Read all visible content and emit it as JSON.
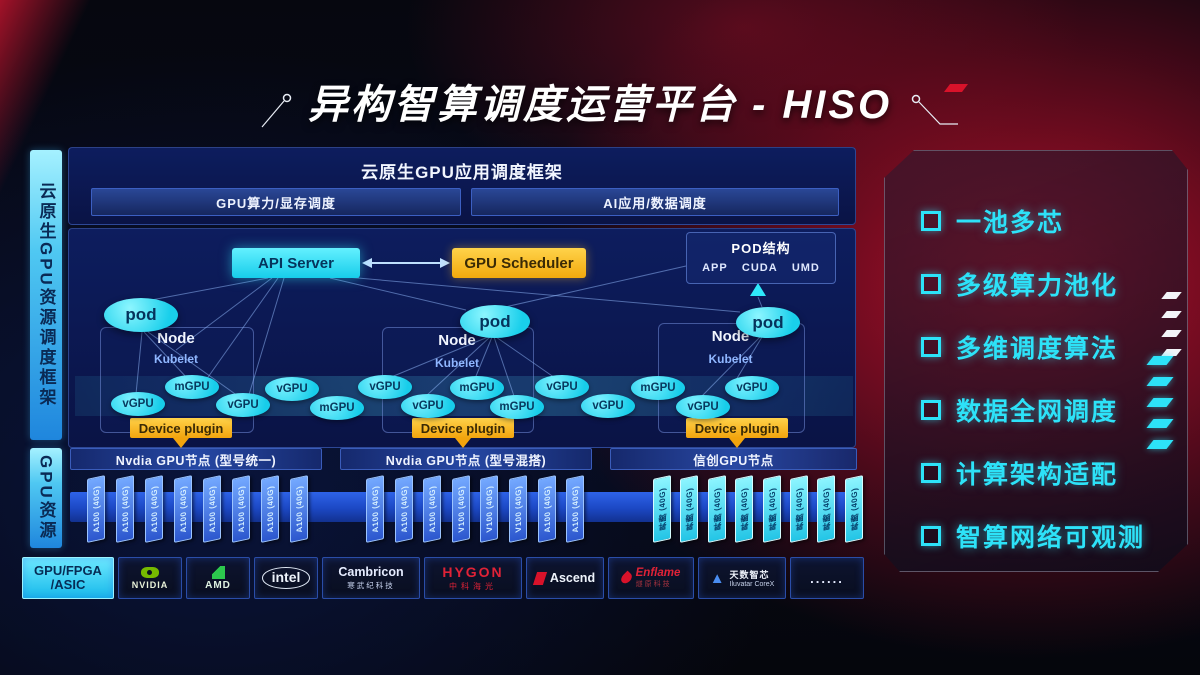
{
  "title": "异构智算调度运营平台 - HISO",
  "colors": {
    "accent_cyan": "#2fe9fa",
    "accent_yellow": "#ffc41f",
    "card_blue": "#4a84f2",
    "card_cyan": "#35e3f8",
    "nvidia_green": "#76b900",
    "brand_red": "#d8122a"
  },
  "sidebar": {
    "framework_label": "云原生GPU资源调度框架",
    "gpu_resource_label": "GPU资源"
  },
  "top_frame": {
    "title": "云原生GPU应用调度框架",
    "left_bar": "GPU算力/显存调度",
    "right_bar": "AI应用/数据调度"
  },
  "scheduler": {
    "api_server": "API Server",
    "gpu_scheduler": "GPU Scheduler"
  },
  "pod_structure": {
    "title": "POD结构",
    "items": [
      "APP",
      "CUDA",
      "UMD"
    ]
  },
  "nodes": [
    {
      "pod": "pod",
      "name": "Node",
      "agent": "Kubelet",
      "device_plugin": "Device plugin"
    },
    {
      "pod": "pod",
      "name": "Node",
      "agent": "Kubelet",
      "device_plugin": "Device plugin"
    },
    {
      "pod": "pod",
      "name": "Node",
      "agent": "Kubelet",
      "device_plugin": "Device plugin"
    }
  ],
  "gpu_band": [
    "vGPU",
    "mGPU",
    "vGPU",
    "vGPU",
    "mGPU",
    "vGPU",
    "vGPU",
    "mGPU",
    "mGPU",
    "vGPU",
    "vGPU",
    "mGPU",
    "vGPU",
    "vGPU"
  ],
  "gpu_groups": [
    {
      "label": "Nvdia GPU节点 (型号统一)",
      "variant": "blue",
      "cards": [
        "A100 (40G)",
        "A100 (40G)",
        "A100 (40G)",
        "A100 (40G)",
        "A100 (40G)",
        "A100 (40G)",
        "A100 (40G)",
        "A100 (40G)"
      ]
    },
    {
      "label": "Nvdia GPU节点 (型号混搭)",
      "variant": "blue",
      "cards": [
        "A100 (40G)",
        "A100 (40G)",
        "A100 (40G)",
        "V100 (40G)",
        "V100 (40G)",
        "V100 (40G)",
        "A100 (40G)",
        "A100 (40G)"
      ]
    },
    {
      "label": "信创GPU节点",
      "variant": "cyan",
      "cards": [
        "昇腾 (40G)",
        "昇腾 (40G)",
        "昇腾 (40G)",
        "昇腾 (40G)",
        "昇腾 (40G)",
        "昇腾 (40G)",
        "昇腾 (40G)",
        "昇腾 (40G)"
      ]
    }
  ],
  "vendors": [
    {
      "type": "gpufpga",
      "line1": "GPU/FPGA",
      "line2": "/ASIC"
    },
    {
      "type": "nvidia",
      "name": "NVIDIA"
    },
    {
      "type": "amd",
      "name": "AMD"
    },
    {
      "type": "intel",
      "name": "intel"
    },
    {
      "type": "cambricon",
      "name": "Cambricon",
      "sub": "寒武纪科技"
    },
    {
      "type": "hygon",
      "name": "HYGON",
      "sub": "中科海光"
    },
    {
      "type": "ascend",
      "name": "Ascend"
    },
    {
      "type": "enflame",
      "name": "Enflame",
      "sub": "燧原科技"
    },
    {
      "type": "iluvatar",
      "name": "天数智芯",
      "sub": "Iluvatar CoreX"
    },
    {
      "type": "dots",
      "name": "......"
    }
  ],
  "features": [
    "一池多芯",
    "多级算力池化",
    "多维调度算法",
    "数据全网调度",
    "计算架构适配",
    "智算网络可观测"
  ]
}
